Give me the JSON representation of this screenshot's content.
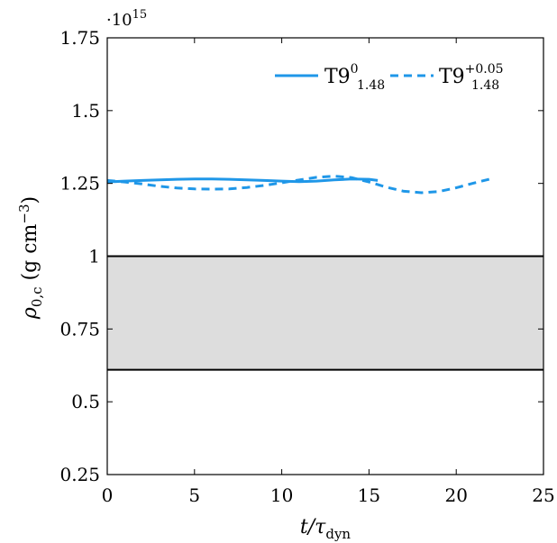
{
  "chart_data": {
    "type": "line",
    "title": "",
    "xlabel": {
      "main": "t/τ",
      "sub": "dyn"
    },
    "ylabel": {
      "main": "ρ",
      "sub": "0,c",
      "unit": " (g cm",
      "unit_exp": "−3",
      "unit_close": ")"
    },
    "y_multiplier": {
      "base": "·10",
      "exp": "15"
    },
    "xlim": [
      0,
      25
    ],
    "ylim": [
      0.25,
      1.75
    ],
    "x_ticks": [
      0,
      5,
      10,
      15,
      20,
      25
    ],
    "x_tick_labels": [
      "0",
      "5",
      "10",
      "15",
      "20",
      "25"
    ],
    "y_ticks": [
      0.25,
      0.5,
      0.75,
      1.0,
      1.25,
      1.5,
      1.75
    ],
    "y_tick_labels": [
      "0.25",
      "0.5",
      "0.75",
      "1",
      "1.25",
      "1.5",
      "1.75"
    ],
    "grid": false,
    "legend_position": "top-right",
    "band": {
      "ymin": 0.61,
      "ymax": 1.0,
      "fill": "#dddddd",
      "edge": "#000000"
    },
    "series": [
      {
        "name": "T9",
        "legend_sup": "0",
        "legend_sub": "1.48",
        "style": "solid",
        "color": "#1f97e8",
        "x": [
          0,
          1,
          2,
          3,
          4,
          5,
          6,
          7,
          8,
          9,
          10,
          11,
          12,
          13,
          14,
          15,
          15.5
        ],
        "y": [
          1.255,
          1.258,
          1.26,
          1.262,
          1.264,
          1.265,
          1.265,
          1.264,
          1.262,
          1.26,
          1.258,
          1.256,
          1.258,
          1.262,
          1.265,
          1.264,
          1.26
        ]
      },
      {
        "name": "T9",
        "legend_sup": "+0.05",
        "legend_sub": "1.48",
        "style": "dashed",
        "color": "#1f97e8",
        "x": [
          0,
          1,
          2,
          3,
          4,
          5,
          6,
          7,
          8,
          9,
          10,
          11,
          12,
          13,
          14,
          15,
          16,
          17,
          18,
          19,
          20,
          21,
          22
        ],
        "y": [
          1.26,
          1.255,
          1.248,
          1.24,
          1.234,
          1.231,
          1.23,
          1.231,
          1.236,
          1.243,
          1.252,
          1.262,
          1.271,
          1.275,
          1.27,
          1.255,
          1.237,
          1.223,
          1.218,
          1.222,
          1.235,
          1.251,
          1.266
        ]
      }
    ]
  }
}
